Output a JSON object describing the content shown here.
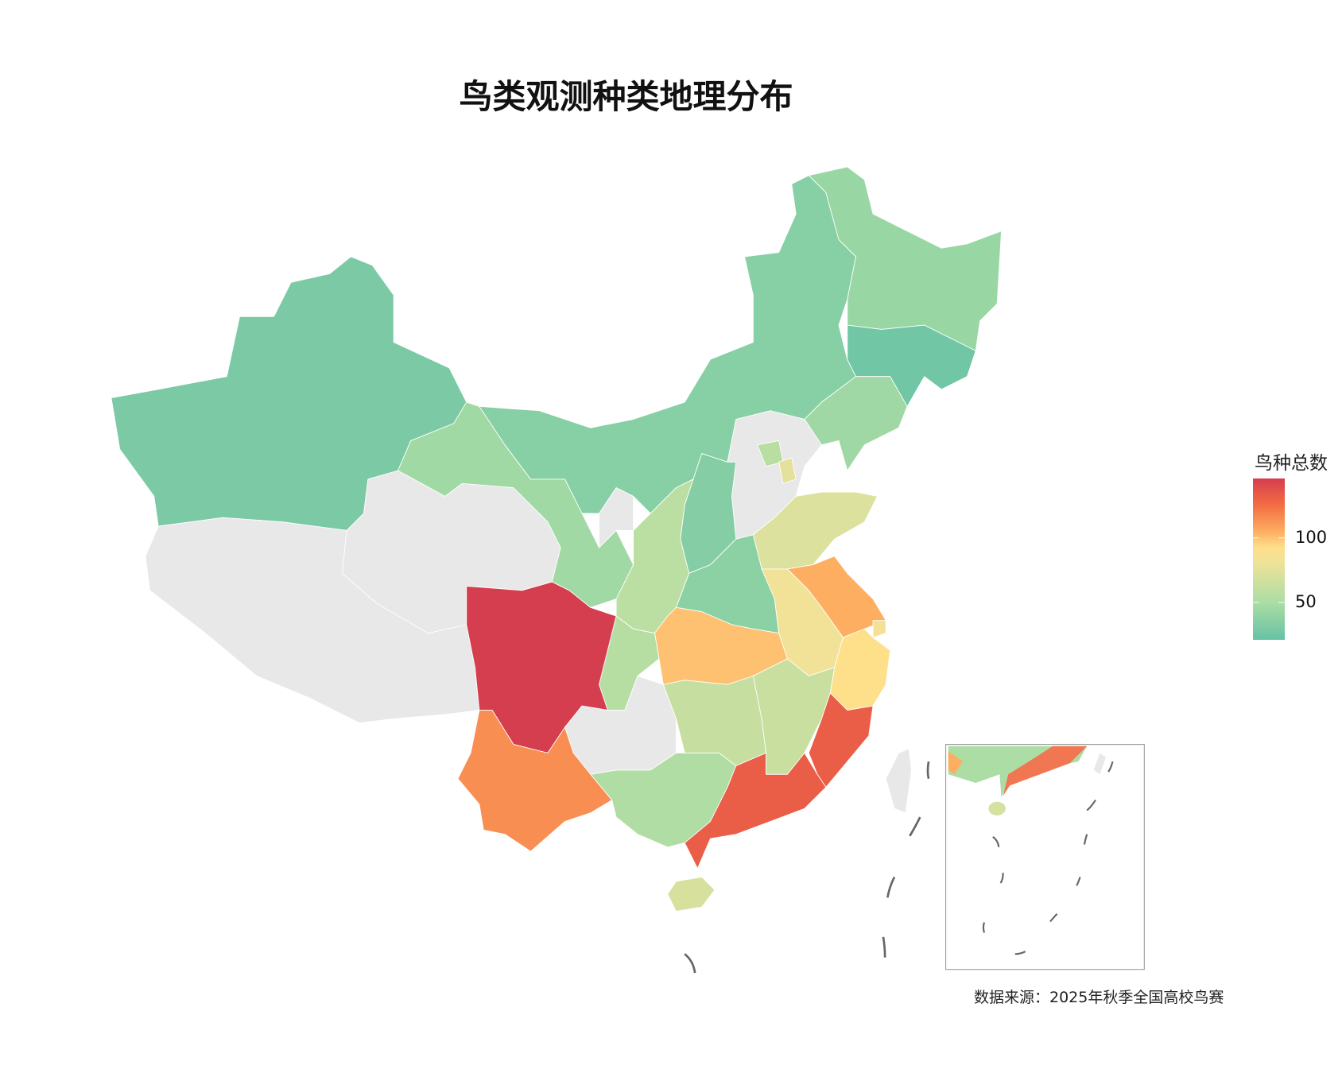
{
  "chart_data": {
    "type": "choropleth",
    "title": "鸟类观测种类地理分布",
    "legend": {
      "title": "鸟种总数",
      "ticks": [
        50,
        100
      ],
      "range": [
        21,
        146
      ],
      "placement": "right"
    },
    "caption": "数据来源：2025年秋季全国高校鸟赛",
    "no_data_color": "#e8e8e8",
    "colorscale": [
      [
        21,
        "#66c2a5"
      ],
      [
        50,
        "#abdda4"
      ],
      [
        80,
        "#eee29a"
      ],
      [
        92,
        "#fee08b"
      ],
      [
        105,
        "#fdae61"
      ],
      [
        125,
        "#f46d43"
      ],
      [
        146,
        "#d53e4f"
      ]
    ],
    "regions": [
      {
        "name": "新疆",
        "value": 30
      },
      {
        "name": "西藏",
        "value": null
      },
      {
        "name": "青海",
        "value": null
      },
      {
        "name": "甘肃",
        "value": 46
      },
      {
        "name": "内蒙古",
        "value": 35
      },
      {
        "name": "黑龙江",
        "value": 42
      },
      {
        "name": "吉林",
        "value": 25
      },
      {
        "name": "辽宁",
        "value": 45
      },
      {
        "name": "河北",
        "value": null
      },
      {
        "name": "北京",
        "value": 56
      },
      {
        "name": "天津",
        "value": 75
      },
      {
        "name": "山西",
        "value": 34
      },
      {
        "name": "山东",
        "value": 72
      },
      {
        "name": "河南",
        "value": 37
      },
      {
        "name": "陕西",
        "value": 57
      },
      {
        "name": "宁夏",
        "value": null
      },
      {
        "name": "江苏",
        "value": 105
      },
      {
        "name": "安徽",
        "value": 82
      },
      {
        "name": "上海",
        "value": 85
      },
      {
        "name": "浙江",
        "value": 92
      },
      {
        "name": "湖北",
        "value": 100
      },
      {
        "name": "重庆",
        "value": 55
      },
      {
        "name": "四川",
        "value": 146
      },
      {
        "name": "贵州",
        "value": null
      },
      {
        "name": "云南",
        "value": 115
      },
      {
        "name": "湖南",
        "value": 62
      },
      {
        "name": "江西",
        "value": 63
      },
      {
        "name": "福建",
        "value": 132
      },
      {
        "name": "广西",
        "value": 52
      },
      {
        "name": "广东",
        "value": 132
      },
      {
        "name": "海南",
        "value": 70
      },
      {
        "name": "台湾",
        "value": null
      }
    ]
  }
}
